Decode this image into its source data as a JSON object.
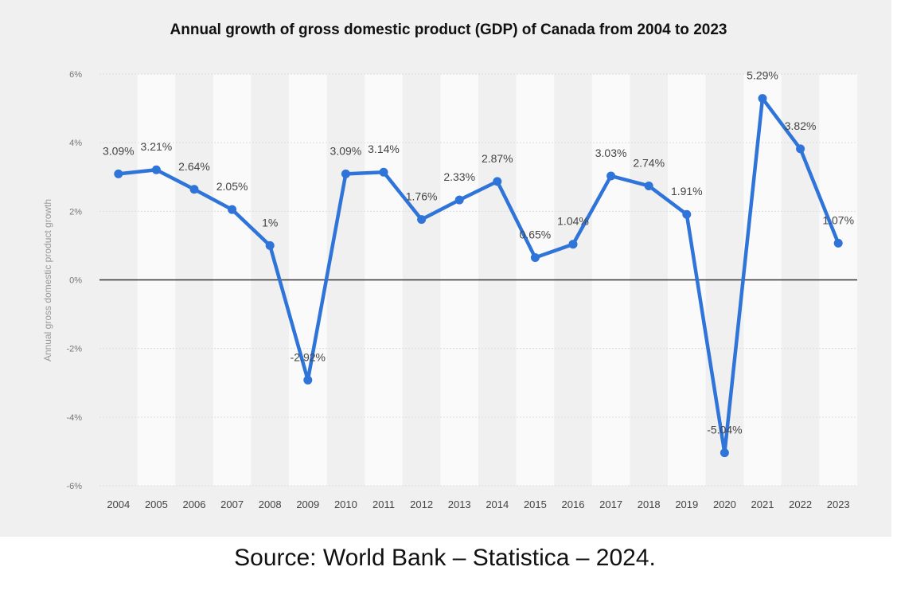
{
  "caption": "Source:  World Bank – Statistica – 2024.",
  "chart_data": {
    "type": "line",
    "title": "Annual growth of gross domestic product (GDP) of Canada from 2004 to 2023",
    "xlabel": "",
    "ylabel": "Annual gross domestic product growth",
    "categories": [
      "2004",
      "2005",
      "2006",
      "2007",
      "2008",
      "2009",
      "2010",
      "2011",
      "2012",
      "2013",
      "2014",
      "2015",
      "2016",
      "2017",
      "2018",
      "2019",
      "2020",
      "2021",
      "2022",
      "2023"
    ],
    "series": [
      {
        "values": [
          3.09,
          3.21,
          2.64,
          2.05,
          1.0,
          -2.92,
          3.09,
          3.14,
          1.76,
          2.33,
          2.87,
          0.65,
          1.04,
          3.03,
          2.74,
          1.91,
          -5.04,
          5.29,
          3.82,
          1.07
        ],
        "data_labels": [
          "3.09%",
          "3.21%",
          "2.64%",
          "2.05%",
          "1%",
          "-2.92%",
          "3.09%",
          "3.14%",
          "1.76%",
          "2.33%",
          "2.87%",
          "0.65%",
          "1.04%",
          "3.03%",
          "2.74%",
          "1.91%",
          "-5.04%",
          "5.29%",
          "3.82%",
          "1.07%"
        ],
        "color": "#2f74d8"
      }
    ],
    "ylim": [
      -6,
      6
    ],
    "yticks": [
      -6,
      -4,
      -2,
      0,
      2,
      4,
      6
    ],
    "ytick_labels": [
      "-6%",
      "-4%",
      "-2%",
      "0%",
      "2%",
      "4%",
      "6%"
    ],
    "grid": true,
    "legend": "none"
  }
}
